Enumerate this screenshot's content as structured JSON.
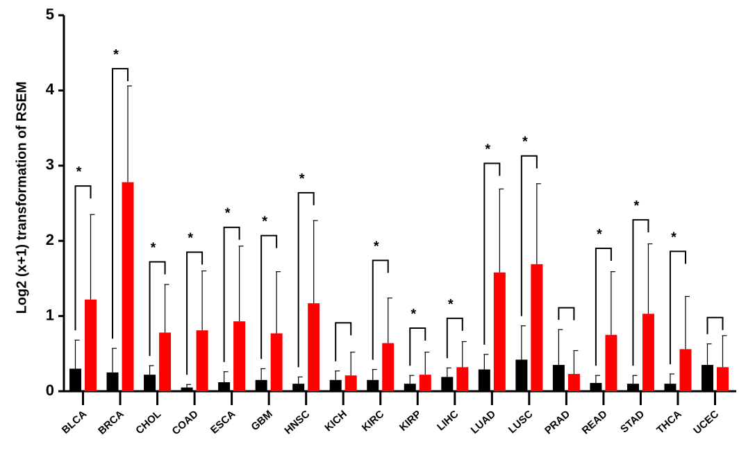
{
  "chart_data": {
    "type": "bar",
    "ylabel": "Log2 (x+1) transformation of RSEM",
    "xlabel": "",
    "ylim": [
      0,
      5
    ],
    "yticks": [
      "0",
      "1",
      "2",
      "3",
      "4",
      "5"
    ],
    "categories": [
      "BLCA",
      "BRCA",
      "CHOL",
      "COAD",
      "ESCA",
      "GBM",
      "HNSC",
      "KICH",
      "KIRC",
      "KIRP",
      "LIHC",
      "LUAD",
      "LUSC",
      "PRAD",
      "READ",
      "STAD",
      "THCA",
      "UCEC"
    ],
    "series": [
      {
        "color": "#000000",
        "values": [
          0.3,
          0.25,
          0.22,
          0.05,
          0.12,
          0.15,
          0.1,
          0.15,
          0.15,
          0.1,
          0.19,
          0.29,
          0.42,
          0.35,
          0.11,
          0.1,
          0.1,
          0.35
        ],
        "errors": [
          0.38,
          0.32,
          0.12,
          0.04,
          0.14,
          0.15,
          0.09,
          0.12,
          0.14,
          0.11,
          0.12,
          0.2,
          0.45,
          0.47,
          0.1,
          0.11,
          0.13,
          0.28
        ]
      },
      {
        "color": "#ff0000",
        "values": [
          1.22,
          2.78,
          0.78,
          0.81,
          0.93,
          0.77,
          1.17,
          0.21,
          0.64,
          0.22,
          0.32,
          1.58,
          1.69,
          0.23,
          0.75,
          1.03,
          0.56,
          0.32
        ],
        "errors": [
          1.13,
          1.28,
          0.64,
          0.79,
          1.0,
          0.82,
          1.1,
          0.31,
          0.6,
          0.3,
          0.34,
          1.11,
          1.07,
          0.31,
          0.84,
          0.93,
          0.7,
          0.42
        ]
      }
    ],
    "significance": [
      {
        "category": "BLCA",
        "label": "*",
        "bracket": 2.73
      },
      {
        "category": "BRCA",
        "label": "*",
        "bracket": 4.29
      },
      {
        "category": "CHOL",
        "label": "*",
        "bracket": 1.72
      },
      {
        "category": "COAD",
        "label": "*",
        "bracket": 1.85
      },
      {
        "category": "ESCA",
        "label": "*",
        "bracket": 2.18
      },
      {
        "category": "GBM",
        "label": "*",
        "bracket": 2.07
      },
      {
        "category": "HNSC",
        "label": "*",
        "bracket": 2.64
      },
      {
        "category": "KICH",
        "label": "",
        "bracket": 0.91
      },
      {
        "category": "KIRC",
        "label": "*",
        "bracket": 1.74
      },
      {
        "category": "KIRP",
        "label": "*",
        "bracket": 0.84
      },
      {
        "category": "LIHC",
        "label": "*",
        "bracket": 0.97
      },
      {
        "category": "LUAD",
        "label": "*",
        "bracket": 3.03
      },
      {
        "category": "LUSC",
        "label": "*",
        "bracket": 3.13
      },
      {
        "category": "PRAD",
        "label": "",
        "bracket": 1.11
      },
      {
        "category": "READ",
        "label": "*",
        "bracket": 1.9
      },
      {
        "category": "STAD",
        "label": "*",
        "bracket": 2.28
      },
      {
        "category": "THCA",
        "label": "*",
        "bracket": 1.86
      },
      {
        "category": "UCEC",
        "label": "",
        "bracket": 0.98
      }
    ],
    "grid": false,
    "legend": "none"
  }
}
